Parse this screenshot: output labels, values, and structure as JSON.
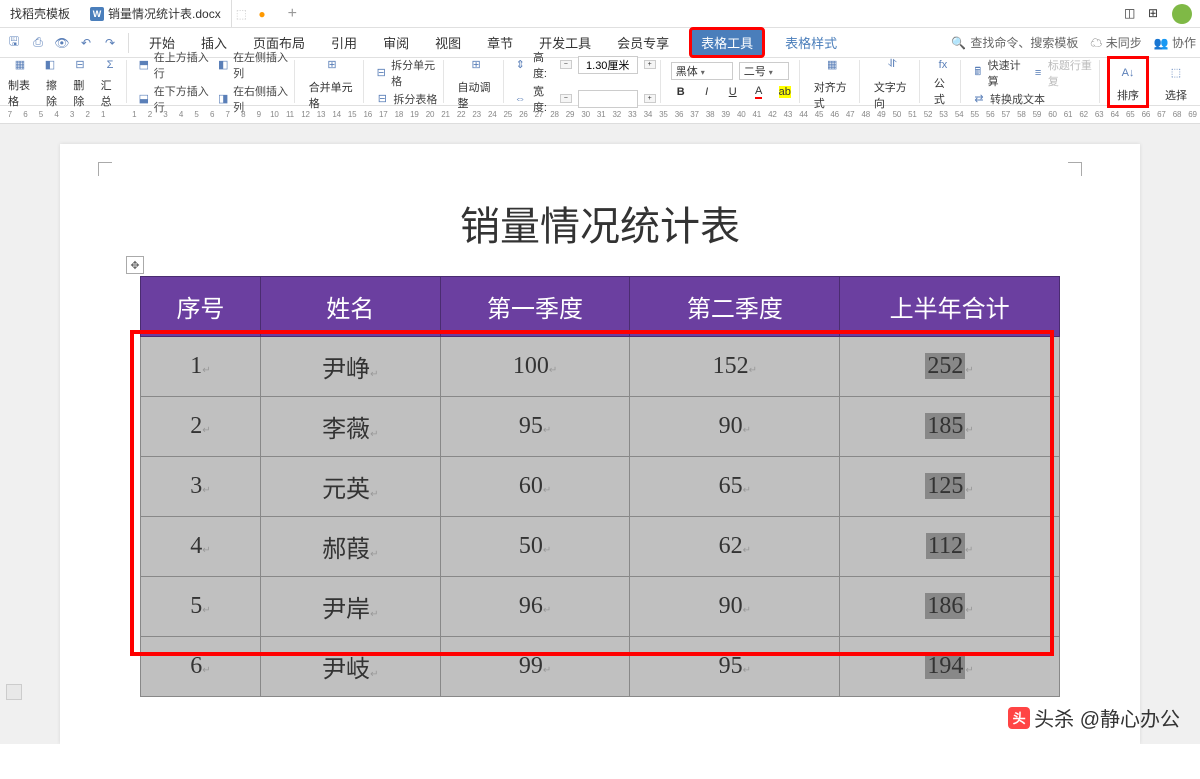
{
  "tabs": {
    "template": "找稻壳模板",
    "doc": "销量情况统计表.docx",
    "record_indicator": "●"
  },
  "menu": {
    "items": [
      "开始",
      "插入",
      "页面布局",
      "引用",
      "审阅",
      "视图",
      "章节",
      "开发工具",
      "会员专享"
    ],
    "table_tools": "表格工具",
    "table_style": "表格样式",
    "search_placeholder": "查找命令、搜索模板",
    "sync": "未同步",
    "collab": "协作"
  },
  "ribbon": {
    "copy_table": "制表格",
    "erase": "擦除",
    "delete": "删除",
    "summary": "汇总",
    "insert_above": "在上方插入行",
    "insert_below": "在下方插入行",
    "insert_left": "在左侧插入列",
    "insert_right": "在右侧插入列",
    "merge_cells": "合并单元格",
    "split_cells": "拆分单元格",
    "split_table": "拆分表格",
    "autofit": "自动调整",
    "height_label": "高度:",
    "height_value": "1.30厘米",
    "width_label": "宽度:",
    "font_family": "黑体",
    "font_size": "二号",
    "align": "对齐方式",
    "text_dir": "文字方向",
    "formula": "公式",
    "quick_calc": "快速计算",
    "header_repeat": "标题行重复",
    "convert_text": "转换成文本",
    "sort": "排序",
    "select": "选择"
  },
  "doc": {
    "title": "销量情况统计表",
    "columns": [
      "序号",
      "姓名",
      "第一季度",
      "第二季度",
      "上半年合计"
    ],
    "rows": [
      {
        "id": "1",
        "name": "尹峥",
        "q1": "100",
        "q2": "152",
        "total": "252"
      },
      {
        "id": "2",
        "name": "李薇",
        "q1": "95",
        "q2": "90",
        "total": "185"
      },
      {
        "id": "3",
        "name": "元英",
        "q1": "60",
        "q2": "65",
        "total": "125"
      },
      {
        "id": "4",
        "name": "郝葭",
        "q1": "50",
        "q2": "62",
        "total": "112"
      },
      {
        "id": "5",
        "name": "尹岸",
        "q1": "96",
        "q2": "90",
        "total": "186"
      },
      {
        "id": "6",
        "name": "尹岐",
        "q1": "99",
        "q2": "95",
        "total": "194"
      }
    ]
  },
  "watermark": "头杀 @静心办公",
  "colors": {
    "header_bg": "#6b3fa0",
    "cell_bg": "#c0c0c0",
    "highlight": "#ff0000",
    "ribbon_active": "#4a7ebb"
  }
}
